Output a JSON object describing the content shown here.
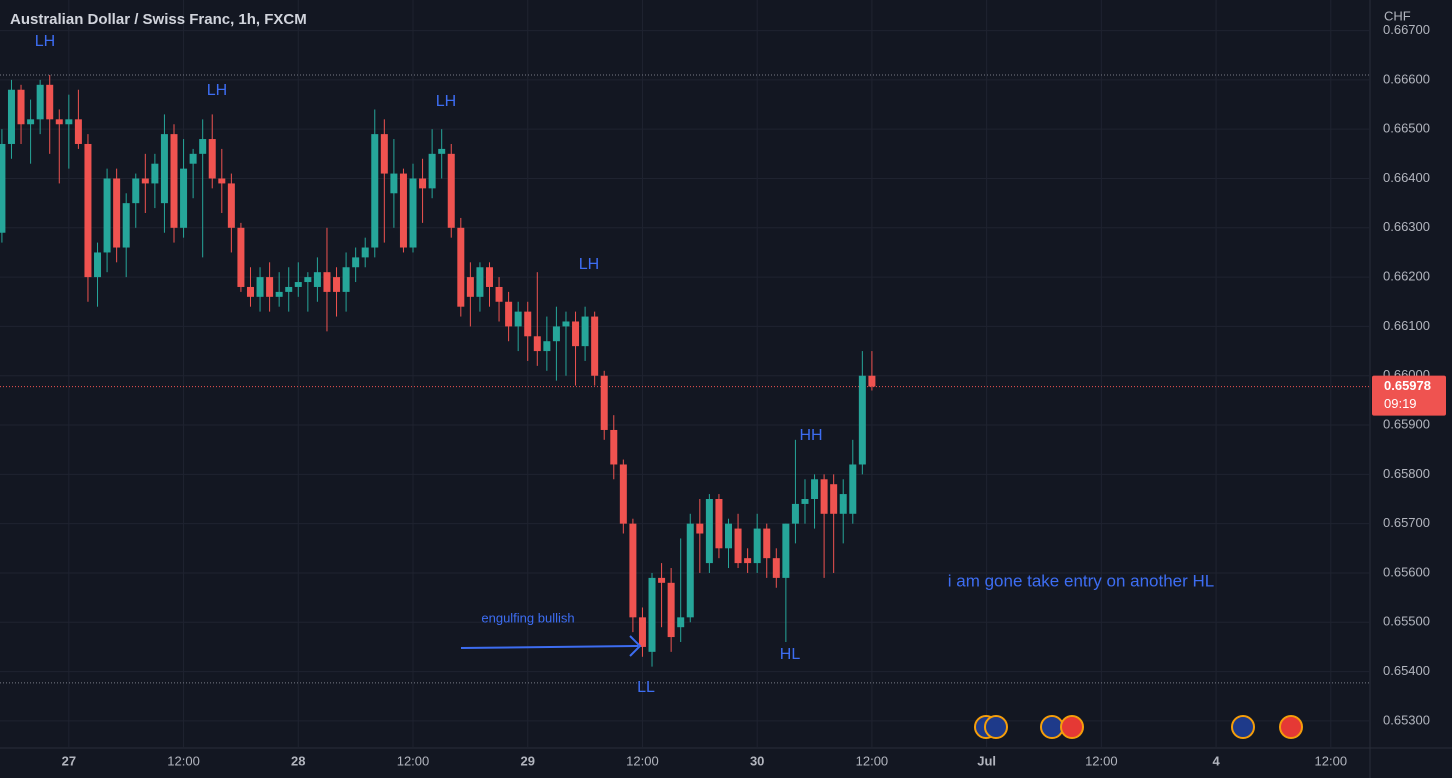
{
  "chart_data": {
    "type": "candlestick",
    "title": "Australian Dollar / Swiss Franc, 1h, FXCM",
    "currency": "CHF",
    "x": [
      -7,
      -6,
      -5,
      -4,
      -3,
      -2,
      -1,
      0,
      1,
      2,
      3,
      4,
      5,
      6,
      7,
      8,
      9,
      10,
      11,
      12,
      13,
      14,
      15,
      16,
      17,
      18,
      19,
      20,
      21,
      22,
      23,
      24,
      25,
      26,
      27,
      28,
      29,
      30,
      31,
      32,
      33,
      34,
      35,
      36,
      37,
      38,
      39,
      40,
      41,
      42,
      43,
      44,
      45,
      46,
      47,
      48,
      49,
      50,
      51,
      52,
      53,
      54,
      55,
      56,
      57,
      58,
      59,
      60,
      61,
      62,
      63,
      64,
      65,
      66,
      67,
      68,
      69,
      70,
      71,
      72,
      73,
      74,
      75,
      76,
      77,
      78,
      79,
      80,
      81,
      82,
      83,
      84
    ],
    "open": [
      0.6629,
      0.6647,
      0.6658,
      0.6651,
      0.6652,
      0.6659,
      0.6652,
      0.6651,
      0.6652,
      0.6647,
      0.662,
      0.6625,
      0.664,
      0.6626,
      0.6635,
      0.664,
      0.6639,
      0.6635,
      0.6649,
      0.663,
      0.6643,
      0.6645,
      0.6648,
      0.664,
      0.6639,
      0.663,
      0.6618,
      0.6616,
      0.662,
      0.6616,
      0.6617,
      0.6618,
      0.6619,
      0.6618,
      0.6621,
      0.662,
      0.6617,
      0.6622,
      0.6624,
      0.6626,
      0.6649,
      0.6637,
      0.6641,
      0.6626,
      0.664,
      0.6638,
      0.6645,
      0.6645,
      0.663,
      0.662,
      0.6616,
      0.6622,
      0.6618,
      0.6615,
      0.661,
      0.6613,
      0.6608,
      0.6605,
      0.6607,
      0.661,
      0.6611,
      0.6606,
      0.6612,
      0.66,
      0.6589,
      0.6582,
      0.657,
      0.6551,
      0.6544,
      0.6559,
      0.6558,
      0.6549,
      0.6551,
      0.657,
      0.6562,
      0.6575,
      0.6565,
      0.6569,
      0.6563,
      0.6562,
      0.6569,
      0.6563,
      0.6559,
      0.657,
      0.6574,
      0.6575,
      0.6579,
      0.6578,
      0.6572,
      0.6572,
      0.6582,
      0.66
    ],
    "high": [
      0.665,
      0.666,
      0.6659,
      0.6656,
      0.666,
      0.6661,
      0.6654,
      0.6657,
      0.6658,
      0.6649,
      0.6627,
      0.6642,
      0.6642,
      0.6637,
      0.6641,
      0.6645,
      0.6645,
      0.6653,
      0.6651,
      0.6648,
      0.6646,
      0.6652,
      0.6653,
      0.6646,
      0.6641,
      0.6631,
      0.6622,
      0.6622,
      0.6623,
      0.6621,
      0.6622,
      0.6623,
      0.6621,
      0.6624,
      0.663,
      0.6622,
      0.6625,
      0.6626,
      0.6628,
      0.6654,
      0.6652,
      0.6648,
      0.6642,
      0.6643,
      0.6644,
      0.665,
      0.665,
      0.6647,
      0.6632,
      0.6623,
      0.6623,
      0.6623,
      0.662,
      0.6617,
      0.6615,
      0.6615,
      0.6621,
      0.6612,
      0.6614,
      0.6613,
      0.6613,
      0.6614,
      0.6613,
      0.6601,
      0.6592,
      0.6583,
      0.6571,
      0.6553,
      0.656,
      0.6562,
      0.6561,
      0.6567,
      0.6572,
      0.6575,
      0.6576,
      0.6576,
      0.6571,
      0.6572,
      0.6565,
      0.6572,
      0.657,
      0.6565,
      0.657,
      0.6587,
      0.6579,
      0.658,
      0.658,
      0.658,
      0.6579,
      0.6587,
      0.6605,
      0.6605
    ],
    "low": [
      0.6627,
      0.6644,
      0.6647,
      0.6643,
      0.6649,
      0.6645,
      0.6639,
      0.6642,
      0.6646,
      0.6615,
      0.6614,
      0.6621,
      0.6623,
      0.662,
      0.663,
      0.6633,
      0.6634,
      0.6629,
      0.6627,
      0.6628,
      0.6636,
      0.6624,
      0.6638,
      0.6633,
      0.6625,
      0.6617,
      0.6614,
      0.6613,
      0.6613,
      0.6614,
      0.6613,
      0.6616,
      0.6613,
      0.6615,
      0.6609,
      0.6612,
      0.6613,
      0.6619,
      0.6622,
      0.6624,
      0.6627,
      0.663,
      0.6625,
      0.6625,
      0.6631,
      0.6636,
      0.664,
      0.6628,
      0.6612,
      0.661,
      0.6613,
      0.6614,
      0.6611,
      0.6607,
      0.6605,
      0.6603,
      0.6602,
      0.6601,
      0.6599,
      0.66,
      0.6598,
      0.6603,
      0.6598,
      0.6587,
      0.6579,
      0.6568,
      0.6548,
      0.6543,
      0.6541,
      0.6549,
      0.6544,
      0.6546,
      0.655,
      0.656,
      0.656,
      0.6563,
      0.6561,
      0.6561,
      0.656,
      0.656,
      0.6559,
      0.6557,
      0.6546,
      0.6566,
      0.657,
      0.6569,
      0.6559,
      0.656,
      0.6566,
      0.657,
      0.658,
      0.6597
    ],
    "close": [
      0.6647,
      0.6658,
      0.6651,
      0.6652,
      0.6659,
      0.6652,
      0.6651,
      0.6652,
      0.6647,
      0.662,
      0.6625,
      0.664,
      0.6626,
      0.6635,
      0.664,
      0.6639,
      0.6643,
      0.6649,
      0.663,
      0.6642,
      0.6645,
      0.6648,
      0.664,
      0.6639,
      0.663,
      0.6618,
      0.6616,
      0.662,
      0.6616,
      0.6617,
      0.6618,
      0.6619,
      0.662,
      0.6621,
      0.6617,
      0.6617,
      0.6622,
      0.6624,
      0.6626,
      0.6649,
      0.6641,
      0.6641,
      0.6626,
      0.664,
      0.6638,
      0.6645,
      0.6646,
      0.663,
      0.6614,
      0.6616,
      0.6622,
      0.6618,
      0.6615,
      0.661,
      0.6613,
      0.6608,
      0.6605,
      0.6607,
      0.661,
      0.6611,
      0.6606,
      0.6612,
      0.66,
      0.6589,
      0.6582,
      0.657,
      0.6551,
      0.6545,
      0.6559,
      0.6558,
      0.6547,
      0.6551,
      0.657,
      0.6568,
      0.6575,
      0.6565,
      0.657,
      0.6562,
      0.6562,
      0.6569,
      0.6563,
      0.6559,
      0.657,
      0.6574,
      0.6575,
      0.6579,
      0.6572,
      0.6572,
      0.6576,
      0.6582,
      0.66,
      0.65978
    ],
    "up_color": "#26a69a",
    "down_color": "#ef5350",
    "xlim": [
      -7.2,
      136.1
    ],
    "ylim": [
      0.65245,
      0.66762
    ],
    "xticks": [
      {
        "value": 0,
        "label": "27"
      },
      {
        "value": 12,
        "label": "12:00"
      },
      {
        "value": 24,
        "label": "28"
      },
      {
        "value": 36,
        "label": "12:00"
      },
      {
        "value": 48,
        "label": "29"
      },
      {
        "value": 60,
        "label": "12:00"
      },
      {
        "value": 72,
        "label": "30"
      },
      {
        "value": 84,
        "label": "12:00"
      },
      {
        "value": 96,
        "label": "Jul"
      },
      {
        "value": 108,
        "label": "12:00"
      },
      {
        "value": 120,
        "label": "4"
      },
      {
        "value": 132,
        "label": "12:00"
      }
    ],
    "yticks": [
      {
        "value": 0.653,
        "label": "0.65300"
      },
      {
        "value": 0.654,
        "label": "0.65400"
      },
      {
        "value": 0.655,
        "label": "0.65500"
      },
      {
        "value": 0.656,
        "label": "0.65600"
      },
      {
        "value": 0.657,
        "label": "0.65700"
      },
      {
        "value": 0.658,
        "label": "0.65800"
      },
      {
        "value": 0.659,
        "label": "0.65900"
      },
      {
        "value": 0.66,
        "label": "0.66000"
      },
      {
        "value": 0.661,
        "label": "0.66100"
      },
      {
        "value": 0.662,
        "label": "0.66200"
      },
      {
        "value": 0.663,
        "label": "0.66300"
      },
      {
        "value": 0.664,
        "label": "0.66400"
      },
      {
        "value": 0.665,
        "label": "0.66500"
      },
      {
        "value": 0.666,
        "label": "0.66600"
      },
      {
        "value": 0.667,
        "label": "0.66700"
      }
    ],
    "grid": true,
    "hlines": [
      0.6661,
      0.65377
    ],
    "last_price": 0.65978,
    "countdown": "09:19",
    "annotations": [
      "LH",
      "LH",
      "LH",
      "LH",
      "HH",
      "HL",
      "LL",
      "engulfing bullish",
      "i am gone take entry on another HL"
    ]
  }
}
